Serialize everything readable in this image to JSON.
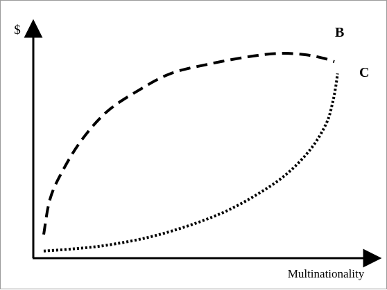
{
  "chart_data": {
    "type": "line",
    "title": "",
    "xlabel": "Multinationality",
    "ylabel": "$",
    "grid": false,
    "legend": "none",
    "series": [
      {
        "name": "B",
        "style": "dashed",
        "color": "#000000",
        "points": [
          [
            0.0,
            0.1
          ],
          [
            0.02,
            0.25
          ],
          [
            0.06,
            0.37
          ],
          [
            0.12,
            0.5
          ],
          [
            0.2,
            0.62
          ],
          [
            0.3,
            0.71
          ],
          [
            0.4,
            0.78
          ],
          [
            0.52,
            0.82
          ],
          [
            0.64,
            0.85
          ],
          [
            0.74,
            0.865
          ],
          [
            0.82,
            0.86
          ],
          [
            0.88,
            0.845
          ],
          [
            0.915,
            0.83
          ]
        ]
      },
      {
        "name": "C",
        "style": "dotted",
        "color": "#000000",
        "points": [
          [
            0.0,
            0.03
          ],
          [
            0.1,
            0.04
          ],
          [
            0.2,
            0.055
          ],
          [
            0.32,
            0.085
          ],
          [
            0.44,
            0.13
          ],
          [
            0.56,
            0.19
          ],
          [
            0.66,
            0.26
          ],
          [
            0.76,
            0.35
          ],
          [
            0.84,
            0.46
          ],
          [
            0.89,
            0.57
          ],
          [
            0.91,
            0.66
          ],
          [
            0.92,
            0.73
          ],
          [
            0.925,
            0.78
          ]
        ]
      }
    ]
  }
}
